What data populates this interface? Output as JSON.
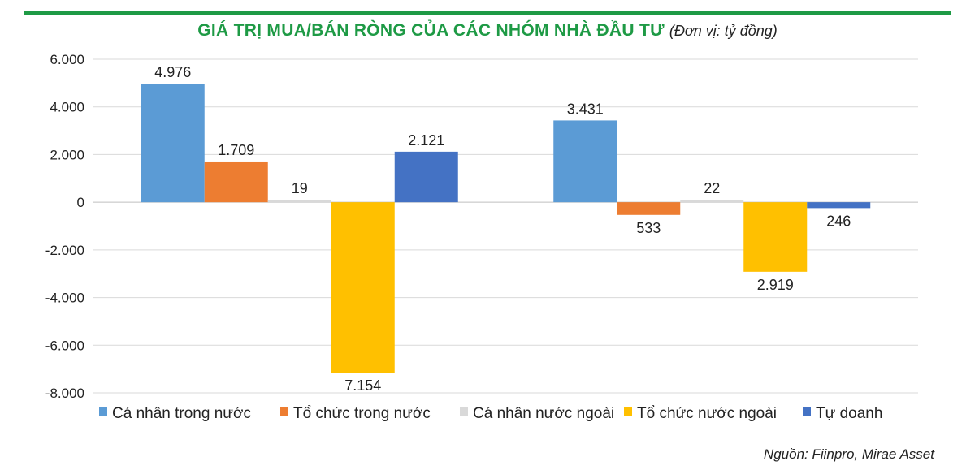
{
  "title": {
    "main": "GIÁ TRỊ MUA/BÁN RÒNG CỦA CÁC NHÓM NHÀ ĐẦU TƯ",
    "unit": "(Đơn vị: tỷ đồng)"
  },
  "source": "Nguồn: Fiinpro, Mirae Asset",
  "chart_data": {
    "type": "bar",
    "categories": [
      "",
      ""
    ],
    "ylim": [
      -8000,
      6000
    ],
    "yticks": [
      6000,
      4000,
      2000,
      0,
      -2000,
      -4000,
      -6000,
      -8000
    ],
    "ytick_labels": [
      "6.000",
      "4.000",
      "2.000",
      "0",
      "-2.000",
      "-4.000",
      "-6.000",
      "-8.000"
    ],
    "grid": true,
    "legend_position": "bottom",
    "series": [
      {
        "name": "Cá nhân trong nước",
        "color": "#5b9bd5",
        "values": [
          4976,
          3431
        ],
        "labels": [
          "4.976",
          "3.431"
        ]
      },
      {
        "name": "Tổ chức trong nước",
        "color": "#ed7d31",
        "values": [
          1709,
          -533
        ],
        "labels": [
          "1.709",
          "533"
        ]
      },
      {
        "name": "Cá nhân nước ngoài",
        "color": "#d9d9d9",
        "values": [
          19,
          22
        ],
        "labels": [
          "19",
          "22"
        ]
      },
      {
        "name": "Tổ chức nước ngoài",
        "color": "#ffc000",
        "values": [
          -7154,
          -2919
        ],
        "labels": [
          "7.154",
          "2.919"
        ]
      },
      {
        "name": "Tự doanh",
        "color": "#4472c4",
        "values": [
          2121,
          -246
        ],
        "labels": [
          "2.121",
          "246"
        ]
      }
    ]
  }
}
